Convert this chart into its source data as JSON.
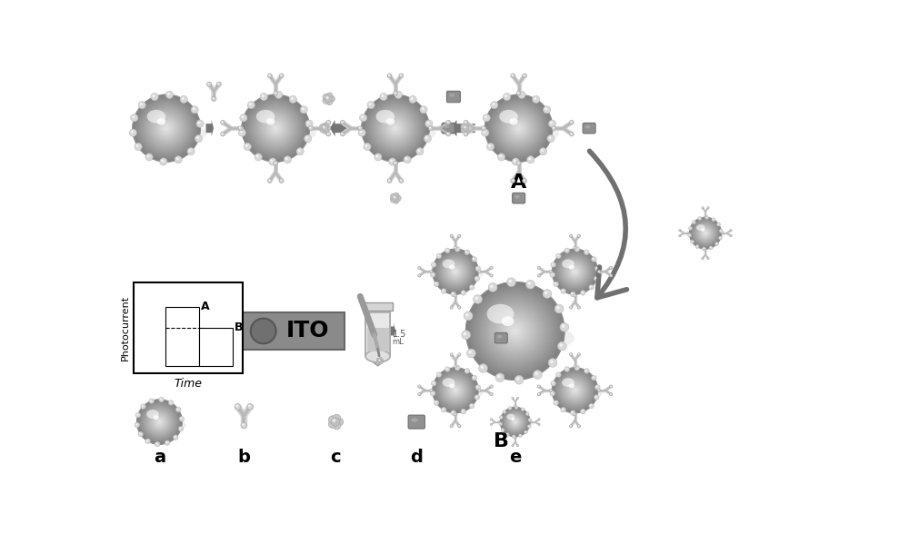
{
  "bg_color": "#ffffff",
  "arrow_color": "#757575",
  "dark_arrow_color": "#606060",
  "ball_light": "#e8e8e8",
  "ball_mid": "#c0c0c0",
  "ball_dark": "#888888",
  "ball_shadow": "#707070",
  "bump_color": "#d5d5d5",
  "bump_edge": "#aaaaaa",
  "ab_color": "#c8c8c8",
  "ab_edge": "#888888",
  "antigen_c_color": "#b0b0b0",
  "antigen_d_color": "#909090",
  "ito_bar_color": "#8a8a8a",
  "ito_text": "ITO",
  "label_A": "A",
  "label_B": "B",
  "label_a": "a",
  "label_b": "b",
  "label_c": "c",
  "label_d": "d",
  "label_e": "e",
  "photocurrent_label": "Photocurrent",
  "time_label": "Time"
}
